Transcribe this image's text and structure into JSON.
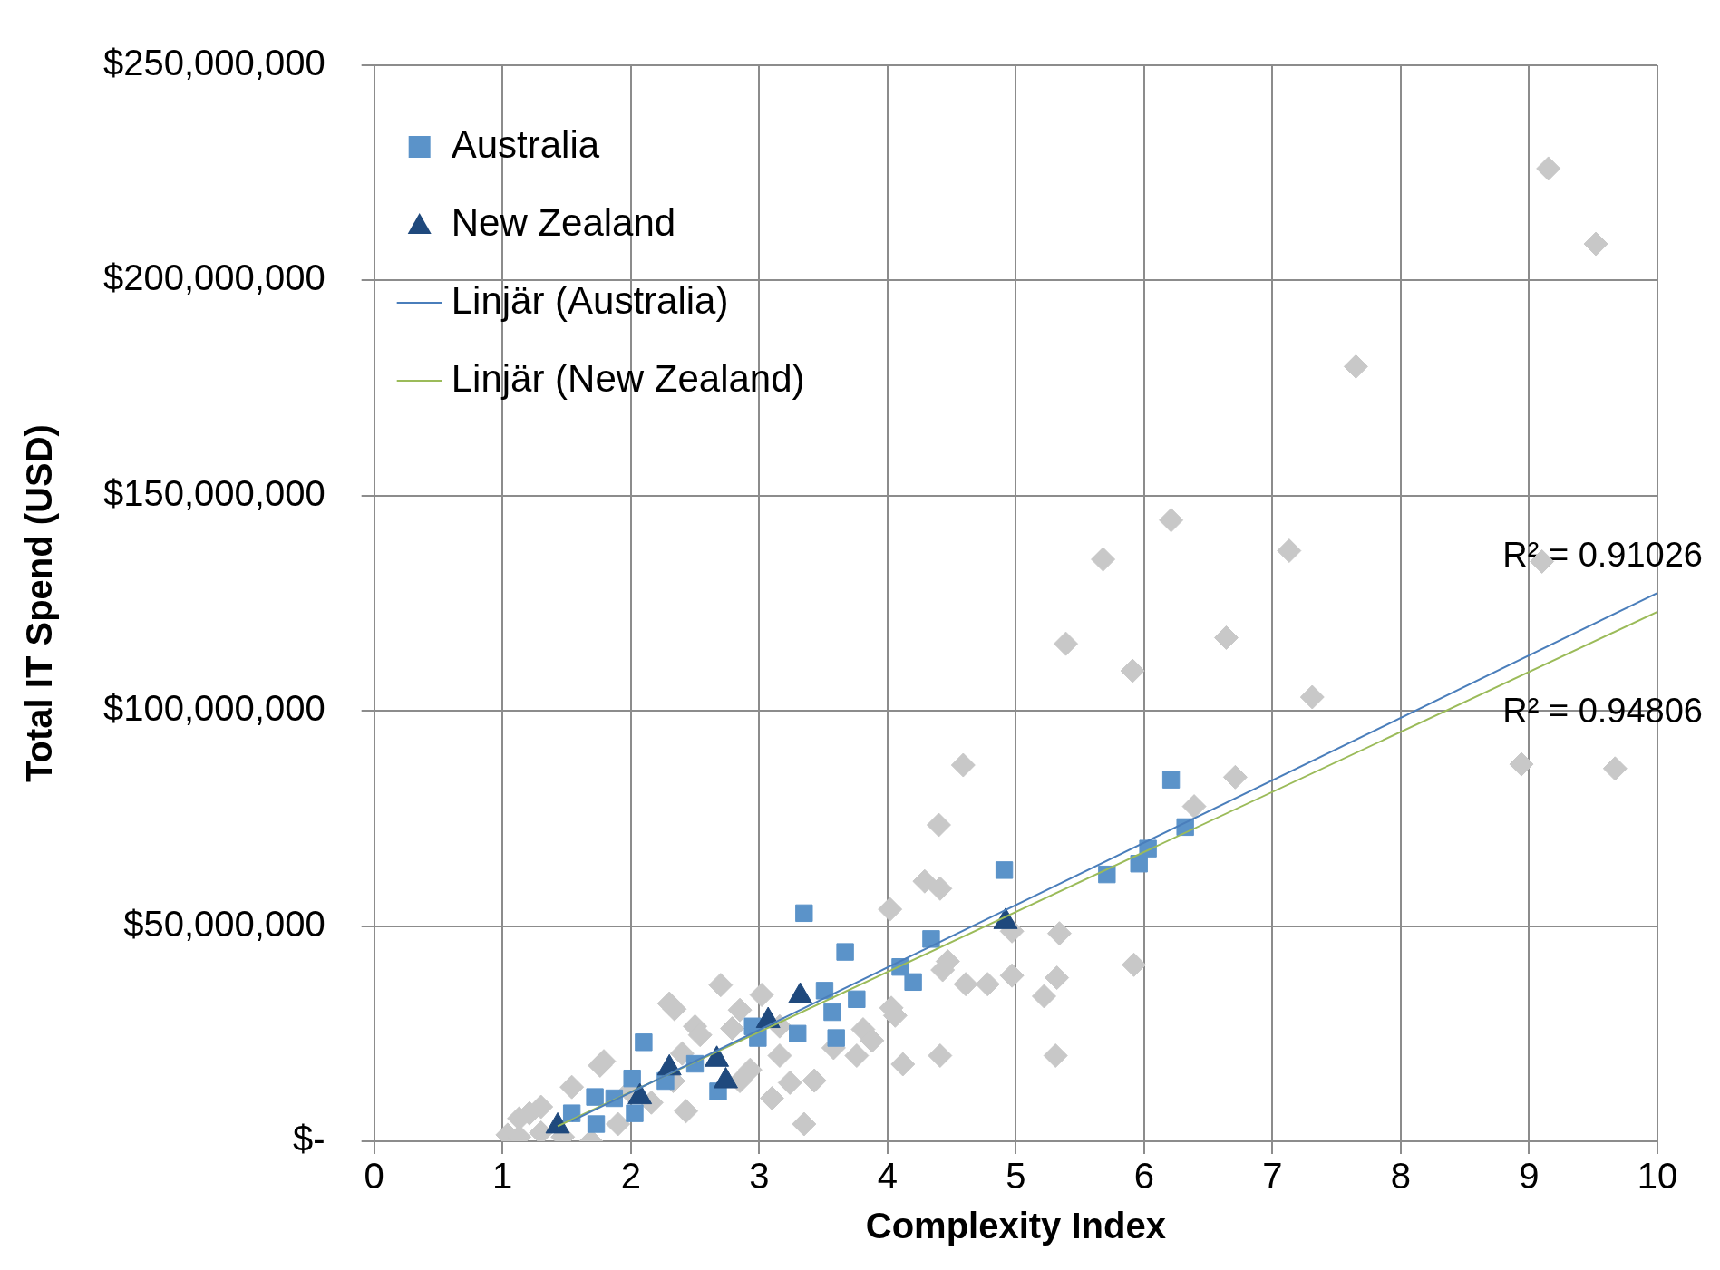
{
  "chart_data": {
    "type": "scatter",
    "xlabel": "Complexity Index",
    "ylabel": "Total IT Spend (USD)",
    "xlim": [
      0,
      10
    ],
    "xticks": [
      0,
      1,
      2,
      3,
      4,
      5,
      6,
      7,
      8,
      9,
      10
    ],
    "ylim": [
      0,
      250000000
    ],
    "yticks": [
      {
        "value": 0,
        "label": "$-"
      },
      {
        "value": 50000000,
        "label": "$50,000,000"
      },
      {
        "value": 100000000,
        "label": "$100,000,000"
      },
      {
        "value": 150000000,
        "label": "$150,000,000"
      },
      {
        "value": 200000000,
        "label": "$200,000,000"
      },
      {
        "value": 250000000,
        "label": "$250,000,000"
      }
    ],
    "grid": true,
    "legend": "top left",
    "series": [
      {
        "type": "scatter",
        "marker": "diamond",
        "color": "#c8c8c8",
        "x": [
          9.15,
          9.52,
          7.65,
          6.21,
          7.13,
          5.68,
          9.1,
          5.39,
          6.64,
          5.91,
          7.31,
          8.94,
          9.67,
          4.59,
          6.71,
          6.39,
          4.4,
          4.29,
          4.41,
          4.02,
          5.34,
          4.97,
          4.47,
          4.43,
          5.92,
          4.97,
          5.32,
          4.61,
          4.78,
          5.22,
          4.03,
          4.06,
          5.31,
          4.41,
          4.12,
          3.81,
          3.88,
          3.76,
          3.43,
          3.35,
          3.1,
          3.24,
          3.16,
          3.16,
          2.7,
          2.3,
          2.34,
          2.79,
          2.5,
          2.54,
          2.4,
          1.79,
          1.76,
          1.54,
          1.3,
          1.21,
          1.13,
          1.04,
          1.13,
          1.3,
          1.47,
          1.69,
          1.9,
          2.16,
          2.43,
          2.85,
          2.93,
          2.33,
          1.99,
          3.58,
          3.02,
          2.85
        ],
        "values": [
          226000000,
          208500000,
          180000000,
          144300000,
          137200000,
          135200000,
          134700000,
          115600000,
          117000000,
          109300000,
          103200000,
          87600000,
          86600000,
          87400000,
          84600000,
          77800000,
          73500000,
          60400000,
          58700000,
          53900000,
          48300000,
          48800000,
          41800000,
          39800000,
          41000000,
          38500000,
          38000000,
          36500000,
          36500000,
          33700000,
          31000000,
          29200000,
          19900000,
          19900000,
          17900000,
          26000000,
          23400000,
          19900000,
          14100000,
          4000000,
          10000000,
          13600000,
          26700000,
          19900000,
          36300000,
          32000000,
          30700000,
          26200000,
          26700000,
          24700000,
          20400000,
          18600000,
          17600000,
          12600000,
          8000000,
          6500000,
          5300000,
          1500000,
          1000000,
          2000000,
          1000000,
          0,
          4000000,
          9000000,
          7000000,
          14000000,
          16600000,
          14000000,
          11600000,
          21700000,
          34000000,
          30500000
        ]
      },
      {
        "type": "scatter",
        "name": "Australia",
        "marker": "square",
        "color": "#5b93c9",
        "x": [
          1.54,
          1.72,
          1.73,
          1.87,
          2.01,
          2.03,
          2.1,
          2.27,
          2.5,
          2.68,
          2.95,
          2.99,
          3.3,
          3.35,
          3.51,
          3.57,
          3.6,
          3.67,
          3.76,
          4.1,
          4.2,
          4.34,
          4.91,
          5.71,
          5.96,
          6.03,
          6.21,
          6.32
        ],
        "values": [
          6500000,
          10300000,
          4000000,
          10000000,
          14600000,
          6500000,
          23000000,
          14000000,
          18000000,
          11600000,
          26700000,
          24000000,
          25000000,
          53000000,
          35000000,
          30000000,
          24000000,
          44000000,
          33000000,
          40500000,
          37000000,
          47000000,
          63000000,
          62000000,
          64500000,
          68000000,
          84000000,
          73000000
        ]
      },
      {
        "type": "scatter",
        "name": "New Zealand",
        "marker": "triangle",
        "color": "#1f497d",
        "x": [
          1.43,
          2.07,
          2.3,
          2.67,
          2.74,
          3.07,
          3.32,
          4.92
        ],
        "values": [
          3500000,
          10300000,
          17000000,
          19000000,
          14000000,
          28000000,
          33700000,
          51000000
        ]
      },
      {
        "type": "line",
        "name": "Linjär (Australia)",
        "marker": "none",
        "color": "#4a7ebb",
        "x": [
          1.54,
          10
        ],
        "values": [
          4700000,
          127400000
        ]
      },
      {
        "type": "line",
        "name": "Linjär (New Zealand)",
        "marker": "none",
        "color": "#9bbb59",
        "x": [
          1.43,
          10
        ],
        "values": [
          3500000,
          123000000
        ]
      }
    ],
    "annotations": [
      "R² = 0.91026",
      "R² = 0.94806"
    ]
  }
}
